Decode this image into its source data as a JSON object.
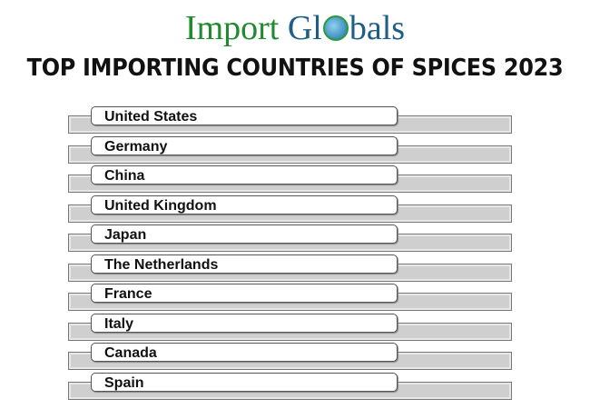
{
  "logo": {
    "part1": "Import",
    "part2a": "Gl",
    "part2b": "bals"
  },
  "title": "TOP IMPORTING COUNTRIES OF SPICES 2023",
  "countries": [
    "United States",
    "Germany",
    "China",
    "United Kingdom",
    "Japan",
    "The Netherlands",
    "France",
    "Italy",
    "Canada",
    "Spain"
  ],
  "colors": {
    "logo_green": "#1f8a2e",
    "logo_blue": "#1e5e86",
    "bar": "#cfcfcf"
  }
}
